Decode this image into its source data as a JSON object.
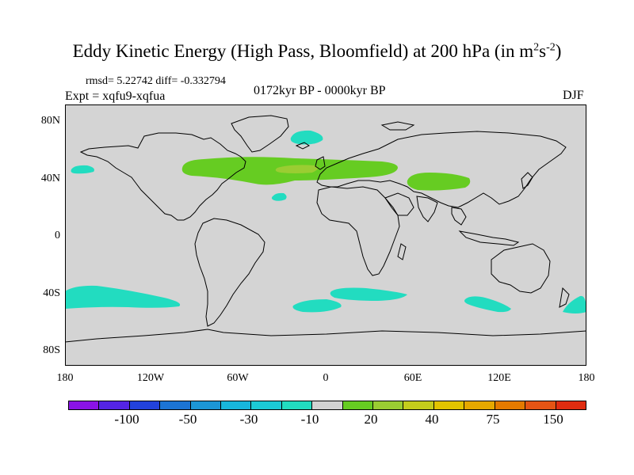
{
  "figure": {
    "title_main": "Eddy Kinetic Energy (High Pass, Bloomfield) at 200 hPa (in m",
    "title_sup1": "2",
    "title_s": "s",
    "title_sup2": "-2",
    "title_close": ")",
    "rmsd_text": "rmsd= 5.22742 diff= -0.332794",
    "expt_text": "Expt = xqfu9-xqfua",
    "period_text": "0172kyr BP - 0000kyr BP",
    "season_text": "DJF"
  },
  "map": {
    "ocean_color": "#d4d4d4",
    "coast_color": "#000000",
    "lat_labels": [
      "80N",
      "40N",
      "0",
      "40S",
      "80S"
    ],
    "lon_labels": [
      "180",
      "120W",
      "60W",
      "0",
      "60E",
      "120E",
      "180"
    ]
  },
  "anomalies": [
    {
      "name": "north-atlantic-jet",
      "sign": "positive",
      "level": "20",
      "color": "#66cc22"
    },
    {
      "name": "asian-jet",
      "sign": "positive",
      "level": "20",
      "color": "#66cc22"
    },
    {
      "name": "north-atlantic-core",
      "sign": "positive",
      "level": "30",
      "color": "#9acd32"
    },
    {
      "name": "greenland-sea",
      "sign": "negative",
      "level": "-10",
      "color": "#22dcc0"
    },
    {
      "name": "north-pacific-west",
      "sign": "negative",
      "level": "-10",
      "color": "#22dcc0"
    },
    {
      "name": "subtropical-atlantic",
      "sign": "negative",
      "level": "-10",
      "color": "#22dcc0"
    },
    {
      "name": "south-pacific",
      "sign": "negative",
      "level": "-10",
      "color": "#22dcc0"
    },
    {
      "name": "south-atlantic",
      "sign": "negative",
      "level": "-10",
      "color": "#22dcc0"
    },
    {
      "name": "south-indian",
      "sign": "negative",
      "level": "-10",
      "color": "#22dcc0"
    },
    {
      "name": "southeast-indian",
      "sign": "negative",
      "level": "-10",
      "color": "#22dcc0"
    },
    {
      "name": "tasman-sea",
      "sign": "negative",
      "level": "-10",
      "color": "#22dcc0"
    }
  ],
  "colorbar": {
    "colors": [
      "#8a12e6",
      "#5424e4",
      "#2242dc",
      "#1c74d4",
      "#1c96d6",
      "#18b6dc",
      "#1ccad6",
      "#22dcc0",
      "#d2d2d2",
      "#66cc22",
      "#9acd32",
      "#c4cc1c",
      "#e2c400",
      "#e6a800",
      "#e47a00",
      "#e45414",
      "#e02c10"
    ],
    "labels": [
      "-100",
      "-50",
      "-30",
      "-10",
      "20",
      "40",
      "75",
      "150"
    ]
  }
}
